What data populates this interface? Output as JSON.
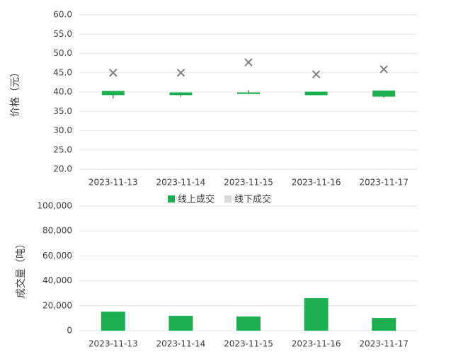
{
  "chart_data": [
    {
      "type": "candlestick",
      "ylabel": "价格（元）",
      "categories": [
        "2023-11-13",
        "2023-11-14",
        "2023-11-15",
        "2023-11-16",
        "2023-11-17"
      ],
      "series": [
        {
          "name": "线上成交",
          "color": "#1db04f",
          "open": [
            39.2,
            39.2,
            39.5,
            39.2,
            38.8
          ],
          "close": [
            40.3,
            39.9,
            39.9,
            40.1,
            40.4
          ],
          "high": [
            40.3,
            39.9,
            40.5,
            40.1,
            40.4
          ],
          "low": [
            38.3,
            38.8,
            39.5,
            39.2,
            38.6
          ]
        },
        {
          "name": "线下成交",
          "color": "#d9d9d9",
          "marker_color": "#7f7f7f",
          "values": [
            45.0,
            45.0,
            47.7,
            44.6,
            45.9
          ]
        }
      ],
      "ylim": [
        20,
        60
      ],
      "yticks": [
        {
          "value": 20,
          "label": "20.0"
        },
        {
          "value": 25,
          "label": "25.0"
        },
        {
          "value": 30,
          "label": "30.0"
        },
        {
          "value": 35,
          "label": "35.0"
        },
        {
          "value": 40,
          "label": "40.0"
        },
        {
          "value": 45,
          "label": "45.0"
        },
        {
          "value": 50,
          "label": "50.0"
        },
        {
          "value": 55,
          "label": "55.0"
        },
        {
          "value": 60,
          "label": "60.0"
        }
      ],
      "grid": true
    },
    {
      "type": "bar",
      "ylabel": "成交量（吨）",
      "categories": [
        "2023-11-13",
        "2023-11-14",
        "2023-11-15",
        "2023-11-16",
        "2023-11-17"
      ],
      "values": [
        15300,
        11900,
        11400,
        26100,
        10200
      ],
      "color": "#1db04f",
      "ylim": [
        0,
        100000
      ],
      "yticks": [
        0,
        {
          "value": 20000,
          "label": "20,000"
        },
        {
          "value": 40000,
          "label": "40,000"
        },
        {
          "value": 60000,
          "label": "60,000"
        },
        {
          "value": 80000,
          "label": "80,000"
        },
        {
          "value": 100000,
          "label": "100,000"
        }
      ],
      "grid": true
    }
  ]
}
